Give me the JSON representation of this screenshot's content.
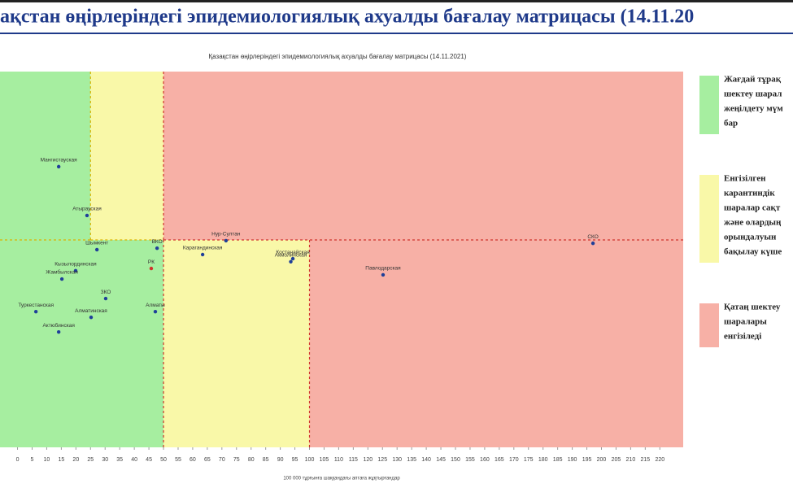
{
  "header": {
    "title": "ақстан өңірлеріндегі эпидемиологиялық ахуалды бағалау матрицасы  (14.11.20"
  },
  "chart_data": {
    "type": "scatter",
    "title": "Қазақстан өңірлеріндегі эпидемиологиялық ахуалды бағалау матрицасы  (14.11.2021)",
    "x_label": "100 000 тұрғынға шаққандағы аптаға жұқтырғандар",
    "xlim": [
      -6,
      228
    ],
    "ylim": [
      0,
      100
    ],
    "xticks": [
      0,
      5,
      10,
      15,
      20,
      25,
      30,
      35,
      40,
      45,
      50,
      55,
      60,
      65,
      70,
      75,
      80,
      85,
      90,
      95,
      100,
      105,
      110,
      115,
      120,
      125,
      130,
      135,
      140,
      145,
      150,
      155,
      160,
      165,
      170,
      175,
      180,
      185,
      190,
      195,
      200,
      205,
      210,
      215,
      220
    ],
    "zones": [
      {
        "x": [
          -6,
          25
        ],
        "y": [
          55.2,
          100
        ],
        "color": "#a6eea0",
        "edge": "#d9b400"
      },
      {
        "x": [
          25,
          50
        ],
        "y": [
          55.2,
          100
        ],
        "color": "#f9f8a8",
        "edge": "#d9b400"
      },
      {
        "x": [
          50,
          228
        ],
        "y": [
          55.2,
          100
        ],
        "color": "#f7b0a6",
        "edge": "#d0342c"
      },
      {
        "x": [
          -6,
          50
        ],
        "y": [
          0,
          55.2
        ],
        "color": "#a6eea0",
        "edge": "#d0342c"
      },
      {
        "x": [
          50,
          100
        ],
        "y": [
          0,
          55.2
        ],
        "color": "#f9f8a8",
        "edge": "#d0342c"
      },
      {
        "x": [
          100,
          228
        ],
        "y": [
          0,
          55.2
        ],
        "color": "#f7b0a6",
        "edge": "#d0342c"
      }
    ],
    "labels": [
      "Мангистауская",
      "Атырауская",
      "Шымкент",
      "ВКО",
      "Кызылординская",
      "Жамбылская",
      "ЗКО",
      "Туркестанская",
      "Алматинская",
      "Алматы",
      "Актюбинская",
      "РК",
      "Нур-Султан",
      "Карагандинская",
      "Костанайская",
      "Акмолинская",
      "Павлодарская",
      "СКО"
    ],
    "x": [
      14.1,
      23.8,
      27.2,
      47.8,
      19.9,
      15.2,
      30.2,
      6.3,
      25.2,
      47.2,
      14.1,
      45.8,
      71.4,
      63.4,
      94.3,
      93.6,
      125.2,
      197.1
    ],
    "y": [
      74.7,
      61.7,
      52.6,
      53.0,
      47.0,
      44.8,
      39.6,
      36.1,
      34.6,
      36.1,
      30.7,
      47.6,
      55.0,
      51.3,
      50.2,
      49.4,
      45.9,
      54.3
    ],
    "point_colors": [
      "#1f3f99",
      "#1f3f99",
      "#1f3f99",
      "#1f3f99",
      "#1f3f99",
      "#1f3f99",
      "#1f3f99",
      "#1f3f99",
      "#1f3f99",
      "#1f3f99",
      "#1f3f99",
      "#d0342c",
      "#1f3f99",
      "#1f3f99",
      "#1f3f99",
      "#1f3f99",
      "#1f3f99",
      "#1f3f99"
    ],
    "legend": [
      {
        "color": "#a6eea0",
        "lines": [
          "Жағдай тұрақ",
          "шектеу шарал",
          "жеңілдету мүм",
          "бар"
        ]
      },
      {
        "color": "#f9f8a8",
        "lines": [
          "Енгізілген",
          "карантиндік",
          "шаралар сақт",
          "және олардың",
          "орындалуын",
          "бақылау күше"
        ]
      },
      {
        "color": "#f7b0a6",
        "lines": [
          "Қатаң шектеу",
          "шаралары",
          "енгізіледі"
        ]
      }
    ]
  }
}
